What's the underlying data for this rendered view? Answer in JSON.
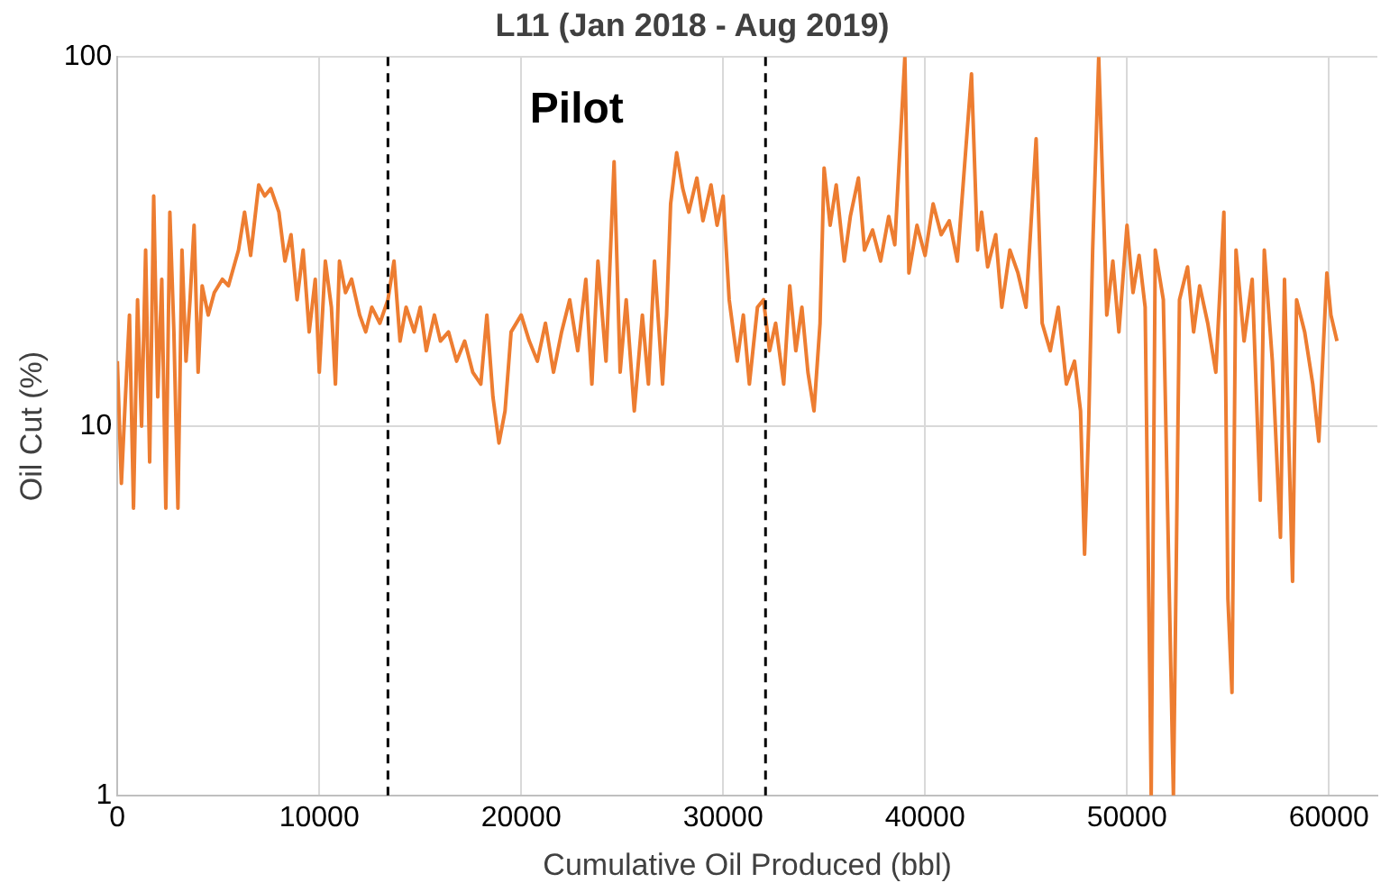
{
  "chart_data": {
    "type": "line",
    "title": "L11 (Jan 2018 - Aug 2019)",
    "xlabel": "Cumulative Oil Produced (bbl)",
    "ylabel": "Oil Cut (%)",
    "x": [
      0,
      200,
      400,
      600,
      800,
      1000,
      1200,
      1400,
      1600,
      1800,
      2000,
      2200,
      2400,
      2600,
      2800,
      3000,
      3200,
      3400,
      3600,
      3800,
      4000,
      4200,
      4500,
      4800,
      5200,
      5500,
      6000,
      6300,
      6600,
      7000,
      7300,
      7600,
      8000,
      8300,
      8600,
      8900,
      9200,
      9500,
      9800,
      10000,
      10300,
      10600,
      10800,
      11000,
      11300,
      11600,
      12000,
      12300,
      12600,
      13000,
      13400,
      13700,
      14000,
      14300,
      14700,
      15000,
      15300,
      15700,
      16000,
      16400,
      16800,
      17200,
      17600,
      18000,
      18300,
      18600,
      18900,
      19200,
      19500,
      20000,
      20400,
      20800,
      21200,
      21600,
      22000,
      22400,
      22800,
      23200,
      23500,
      23800,
      24200,
      24600,
      24900,
      25200,
      25600,
      26000,
      26300,
      26600,
      27000,
      27200,
      27400,
      27700,
      28000,
      28300,
      28700,
      29000,
      29400,
      29700,
      30000,
      30300,
      30700,
      31000,
      31300,
      31700,
      32000,
      32300,
      32600,
      33000,
      33300,
      33600,
      33900,
      34200,
      34500,
      34800,
      35000,
      35300,
      35600,
      36000,
      36300,
      36700,
      37000,
      37400,
      37800,
      38200,
      38500,
      39000,
      39200,
      39600,
      40000,
      40400,
      40800,
      41200,
      41600,
      42300,
      42600,
      42800,
      43100,
      43500,
      43800,
      44200,
      44600,
      45000,
      45500,
      45800,
      46200,
      46600,
      47000,
      47400,
      47700,
      47900,
      48100,
      48300,
      48600,
      49000,
      49300,
      49600,
      50000,
      50300,
      50600,
      50900,
      51200,
      51400,
      51800,
      52300,
      52600,
      53000,
      53300,
      53600,
      54000,
      54400,
      54800,
      55000,
      55200,
      55400,
      55800,
      56200,
      56600,
      56800,
      57200,
      57600,
      57800,
      58200,
      58400,
      58800,
      59200,
      59500,
      59900,
      60100,
      60400
    ],
    "series": [
      {
        "color": "#ed7d31",
        "values": [
          15,
          7,
          12,
          20,
          6,
          22,
          10,
          30,
          8,
          42,
          12,
          25,
          6,
          38,
          18,
          6,
          30,
          15,
          22,
          35,
          14,
          24,
          20,
          23,
          25,
          24,
          30,
          38,
          29,
          45,
          42,
          44,
          38,
          28,
          33,
          22,
          30,
          18,
          25,
          14,
          28,
          21,
          13,
          28,
          23,
          25,
          20,
          18,
          21,
          19,
          22,
          28,
          17,
          21,
          18,
          21,
          16,
          20,
          17,
          18,
          15,
          17,
          14,
          13,
          20,
          12,
          9,
          11,
          18,
          20,
          17,
          15,
          19,
          14,
          18,
          22,
          16,
          25,
          13,
          28,
          15,
          52,
          14,
          22,
          11,
          20,
          13,
          28,
          13,
          20,
          40,
          55,
          44,
          38,
          47,
          36,
          45,
          35,
          42,
          22,
          15,
          20,
          13,
          21,
          22,
          16,
          19,
          13,
          24,
          16,
          21,
          14,
          11,
          19,
          50,
          35,
          45,
          28,
          37,
          47,
          30,
          34,
          28,
          37,
          31,
          100,
          26,
          35,
          29,
          40,
          33,
          36,
          28,
          90,
          30,
          38,
          27,
          33,
          21,
          30,
          26,
          21,
          60,
          19,
          16,
          21,
          13,
          15,
          11,
          4.5,
          10,
          30,
          100,
          20,
          28,
          18,
          35,
          23,
          29,
          21,
          1,
          30,
          22,
          1,
          22,
          27,
          18,
          24,
          19,
          14,
          38,
          3.4,
          1.9,
          30,
          17,
          25,
          6.3,
          30,
          15,
          5,
          25,
          3.8,
          22,
          18,
          13,
          9.1,
          26,
          20,
          17
        ]
      }
    ],
    "xlim": [
      0,
      62400
    ],
    "xticks": [
      0,
      10000,
      20000,
      30000,
      40000,
      50000,
      60000
    ],
    "ylim": [
      1,
      100
    ],
    "yticks": [
      1,
      10,
      100
    ],
    "log": true,
    "grid": true,
    "legend": false,
    "marker": "none",
    "line_style": "solid",
    "ref_lines": [
      {
        "axis": "x",
        "value": 13400,
        "color": "#000000",
        "line_style": "dashed"
      },
      {
        "axis": "x",
        "value": 32100,
        "color": "#000000",
        "line_style": "dashed"
      }
    ],
    "annotations": [
      "Pilot"
    ]
  }
}
